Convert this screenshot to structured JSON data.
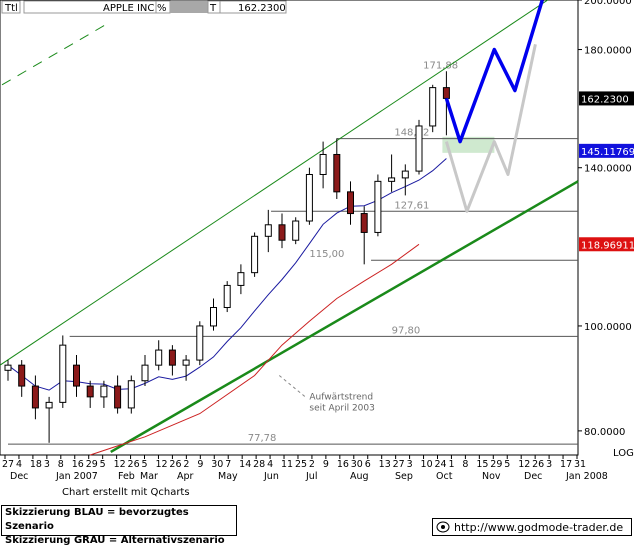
{
  "header": {
    "field1": "Ttl",
    "name": "APPLE INC",
    "unit": "%",
    "type_code": "T",
    "last": "162.2300"
  },
  "credit": "Chart erstellt mit Qcharts",
  "legend": {
    "line1": "Skizzierung BLAU = bevorzugtes Szenario",
    "line2": "Skizzierung GRAU = Alternativszenario"
  },
  "website": "http://www.godmode-trader.de",
  "colors": {
    "candle": "#000000",
    "down_fill": "#8b1a1a",
    "ma_blue": "#1a1aa0",
    "ma_red": "#cc2222",
    "trend_green": "#1a8a1a",
    "scenario_blue": "#0000ee",
    "scenario_grey": "#c8c8c8",
    "target_zone": "#cfe9cf"
  },
  "chart_data": {
    "type": "candlestick",
    "scale": "log",
    "ylim": [
      76,
      200
    ],
    "y_ticks": [
      {
        "value": 80,
        "label": "80.0000"
      },
      {
        "value": 100,
        "label": "100.0000"
      },
      {
        "value": 140,
        "label": "140.0000"
      },
      {
        "value": 180,
        "label": "180.0000"
      },
      {
        "value": 200,
        "label": "200.0000"
      }
    ],
    "y_axis_label": "LOG",
    "price_badges": [
      {
        "value": 162.23,
        "label": "162.2300",
        "style": "black"
      },
      {
        "value": 145.11769,
        "label": "145.11769",
        "style": "blue"
      },
      {
        "value": 118.96911,
        "label": "118.96911",
        "style": "red"
      }
    ],
    "x_day_labels": [
      "27",
      "4",
      "18",
      "3",
      "8",
      "16",
      "29",
      "5",
      "12",
      "26",
      "5",
      "12",
      "26",
      "2",
      "9",
      "30",
      "7",
      "14",
      "28",
      "4",
      "11",
      "25",
      "2",
      "9",
      "16",
      "30",
      "6",
      "13",
      "27",
      "3",
      "10",
      "24",
      "1",
      "8",
      "15",
      "29",
      "5",
      "12",
      "26",
      "3",
      "17",
      "31"
    ],
    "x_month_labels": [
      "Dec",
      "Jan 2007",
      "Feb",
      "Mar",
      "Apr",
      "May",
      "Jun",
      "Jul",
      "Aug",
      "Sep",
      "Oct",
      "Nov",
      "Dec",
      "Jan 2008"
    ],
    "horizontal_levels": [
      {
        "value": 171.88,
        "label": "171,88",
        "style": "label"
      },
      {
        "value": 148.92,
        "label": "148,92",
        "style": "line"
      },
      {
        "value": 127.61,
        "label": "127,61",
        "style": "line"
      },
      {
        "value": 115.0,
        "label": "115,00",
        "style": "line"
      },
      {
        "value": 97.8,
        "label": "97,80",
        "style": "line"
      },
      {
        "value": 77.78,
        "label": "77,78",
        "style": "line"
      }
    ],
    "annotation": {
      "line1": "Aufwärtstrend",
      "line2": "seit April 2003"
    },
    "ohlc_weekly_approx": [
      {
        "x": 0,
        "o": 91,
        "h": 93,
        "l": 89,
        "c": 92
      },
      {
        "x": 1,
        "o": 92,
        "h": 93,
        "l": 86,
        "c": 88
      },
      {
        "x": 2,
        "o": 88,
        "h": 90,
        "l": 82,
        "c": 84
      },
      {
        "x": 3,
        "o": 84,
        "h": 86,
        "l": 78,
        "c": 85
      },
      {
        "x": 4,
        "o": 85,
        "h": 98,
        "l": 84,
        "c": 96
      },
      {
        "x": 5,
        "o": 92,
        "h": 94,
        "l": 86,
        "c": 88
      },
      {
        "x": 6,
        "o": 88,
        "h": 89,
        "l": 84,
        "c": 86
      },
      {
        "x": 7,
        "o": 86,
        "h": 89,
        "l": 84,
        "c": 88
      },
      {
        "x": 8,
        "o": 88,
        "h": 90,
        "l": 83,
        "c": 84
      },
      {
        "x": 9,
        "o": 84,
        "h": 90,
        "l": 83,
        "c": 89
      },
      {
        "x": 10,
        "o": 89,
        "h": 94,
        "l": 88,
        "c": 92
      },
      {
        "x": 11,
        "o": 92,
        "h": 97,
        "l": 91,
        "c": 95
      },
      {
        "x": 12,
        "o": 95,
        "h": 96,
        "l": 90,
        "c": 92
      },
      {
        "x": 13,
        "o": 92,
        "h": 94,
        "l": 89,
        "c": 93
      },
      {
        "x": 14,
        "o": 93,
        "h": 101,
        "l": 92,
        "c": 100
      },
      {
        "x": 15,
        "o": 100,
        "h": 106,
        "l": 99,
        "c": 104
      },
      {
        "x": 16,
        "o": 104,
        "h": 110,
        "l": 103,
        "c": 109
      },
      {
        "x": 17,
        "o": 109,
        "h": 114,
        "l": 107,
        "c": 112
      },
      {
        "x": 18,
        "o": 112,
        "h": 122,
        "l": 111,
        "c": 121
      },
      {
        "x": 19,
        "o": 121,
        "h": 128,
        "l": 117,
        "c": 124
      },
      {
        "x": 20,
        "o": 124,
        "h": 127,
        "l": 118,
        "c": 120
      },
      {
        "x": 21,
        "o": 120,
        "h": 126,
        "l": 119,
        "c": 125
      },
      {
        "x": 22,
        "o": 125,
        "h": 140,
        "l": 124,
        "c": 138
      },
      {
        "x": 23,
        "o": 138,
        "h": 148,
        "l": 134,
        "c": 144
      },
      {
        "x": 24,
        "o": 144,
        "h": 149,
        "l": 131,
        "c": 133
      },
      {
        "x": 25,
        "o": 133,
        "h": 136,
        "l": 124,
        "c": 127
      },
      {
        "x": 26,
        "o": 127,
        "h": 129,
        "l": 114,
        "c": 122
      },
      {
        "x": 27,
        "o": 122,
        "h": 138,
        "l": 121,
        "c": 136
      },
      {
        "x": 28,
        "o": 136,
        "h": 144,
        "l": 133,
        "c": 137
      },
      {
        "x": 29,
        "o": 137,
        "h": 141,
        "l": 132,
        "c": 139
      },
      {
        "x": 30,
        "o": 139,
        "h": 155,
        "l": 138,
        "c": 153
      },
      {
        "x": 31,
        "o": 153,
        "h": 167,
        "l": 151,
        "c": 166
      },
      {
        "x": 32,
        "o": 166,
        "h": 171.88,
        "l": 150,
        "c": 162.23
      }
    ],
    "scenario_blue": [
      {
        "t": 32.0,
        "v": 162.23
      },
      {
        "t": 33.0,
        "v": 148
      },
      {
        "t": 35.5,
        "v": 180
      },
      {
        "t": 37.0,
        "v": 165
      },
      {
        "t": 39.0,
        "v": 200
      }
    ],
    "scenario_grey": [
      {
        "t": 32.0,
        "v": 148
      },
      {
        "t": 33.5,
        "v": 127.61
      },
      {
        "t": 35.5,
        "v": 148
      },
      {
        "t": 36.5,
        "v": 138
      },
      {
        "t": 38.5,
        "v": 182
      }
    ]
  }
}
